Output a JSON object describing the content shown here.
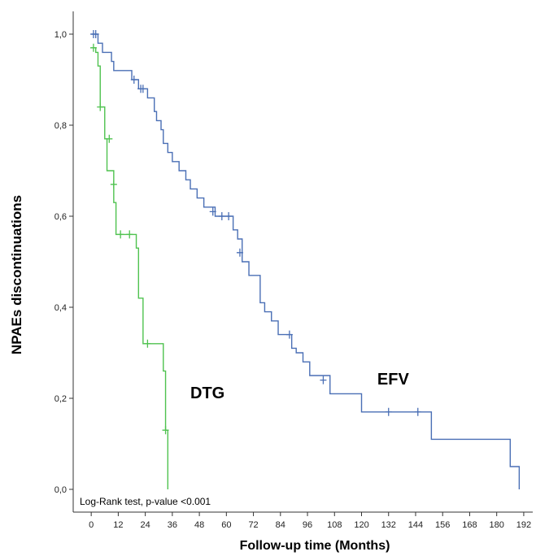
{
  "chart_data": {
    "type": "line",
    "step": true,
    "xlabel": "Follow-up time (Months)",
    "ylabel": "NPAEs discontinuations",
    "xlim": [
      -8,
      196
    ],
    "ylim": [
      -0.05,
      1.05
    ],
    "x_ticks": [
      0,
      12,
      24,
      36,
      48,
      60,
      72,
      84,
      96,
      108,
      120,
      132,
      144,
      156,
      168,
      180,
      192
    ],
    "y_ticks": [
      {
        "value": 0.0,
        "label": "0,0"
      },
      {
        "value": 0.2,
        "label": "0,2"
      },
      {
        "value": 0.4,
        "label": "0,4"
      },
      {
        "value": 0.6,
        "label": "0,6"
      },
      {
        "value": 0.8,
        "label": "0,8"
      },
      {
        "value": 1.0,
        "label": "1,0"
      }
    ],
    "grid": false,
    "annotation": "Log-Rank test, p-value <0.001",
    "series": [
      {
        "name": "EFV",
        "color": "#4a6fb5",
        "label_pos": [
          127,
          0.23
        ],
        "points": [
          [
            0,
            1.0
          ],
          [
            3,
            1.0
          ],
          [
            3,
            0.98
          ],
          [
            5,
            0.98
          ],
          [
            5,
            0.96
          ],
          [
            9,
            0.96
          ],
          [
            9,
            0.94
          ],
          [
            10,
            0.94
          ],
          [
            10,
            0.92
          ],
          [
            18,
            0.92
          ],
          [
            18,
            0.9
          ],
          [
            21,
            0.9
          ],
          [
            21,
            0.88
          ],
          [
            25,
            0.88
          ],
          [
            25,
            0.86
          ],
          [
            28,
            0.86
          ],
          [
            28,
            0.83
          ],
          [
            29,
            0.83
          ],
          [
            29,
            0.81
          ],
          [
            31,
            0.81
          ],
          [
            31,
            0.79
          ],
          [
            32,
            0.79
          ],
          [
            32,
            0.76
          ],
          [
            34,
            0.76
          ],
          [
            34,
            0.74
          ],
          [
            36,
            0.74
          ],
          [
            36,
            0.72
          ],
          [
            39,
            0.72
          ],
          [
            39,
            0.7
          ],
          [
            42,
            0.7
          ],
          [
            42,
            0.68
          ],
          [
            44,
            0.68
          ],
          [
            44,
            0.66
          ],
          [
            47,
            0.66
          ],
          [
            47,
            0.64
          ],
          [
            50,
            0.64
          ],
          [
            50,
            0.62
          ],
          [
            55,
            0.62
          ],
          [
            55,
            0.6
          ],
          [
            63,
            0.6
          ],
          [
            63,
            0.57
          ],
          [
            65,
            0.57
          ],
          [
            65,
            0.55
          ],
          [
            67,
            0.55
          ],
          [
            67,
            0.5
          ],
          [
            70,
            0.5
          ],
          [
            70,
            0.47
          ],
          [
            75,
            0.47
          ],
          [
            75,
            0.41
          ],
          [
            77,
            0.41
          ],
          [
            77,
            0.39
          ],
          [
            80,
            0.39
          ],
          [
            80,
            0.37
          ],
          [
            83,
            0.37
          ],
          [
            83,
            0.34
          ],
          [
            89,
            0.34
          ],
          [
            89,
            0.31
          ],
          [
            91,
            0.31
          ],
          [
            91,
            0.3
          ],
          [
            94,
            0.3
          ],
          [
            94,
            0.28
          ],
          [
            97,
            0.28
          ],
          [
            97,
            0.25
          ],
          [
            106,
            0.25
          ],
          [
            106,
            0.21
          ],
          [
            120,
            0.21
          ],
          [
            120,
            0.17
          ],
          [
            151,
            0.17
          ],
          [
            151,
            0.11
          ],
          [
            186,
            0.11
          ],
          [
            186,
            0.05
          ],
          [
            190,
            0.05
          ],
          [
            190,
            0.0
          ]
        ],
        "censored": [
          [
            1,
            1.0
          ],
          [
            2,
            1.0
          ],
          [
            19,
            0.9
          ],
          [
            22,
            0.88
          ],
          [
            23,
            0.88
          ],
          [
            54,
            0.61
          ],
          [
            58,
            0.6
          ],
          [
            61,
            0.6
          ],
          [
            66,
            0.52
          ],
          [
            88,
            0.34
          ],
          [
            103,
            0.24
          ],
          [
            132,
            0.17
          ],
          [
            145,
            0.17
          ]
        ]
      },
      {
        "name": "DTG",
        "color": "#4fc24f",
        "label_pos": [
          44,
          0.2
        ],
        "points": [
          [
            0,
            0.97
          ],
          [
            2,
            0.97
          ],
          [
            2,
            0.96
          ],
          [
            3,
            0.96
          ],
          [
            3,
            0.93
          ],
          [
            4,
            0.93
          ],
          [
            4,
            0.84
          ],
          [
            6,
            0.84
          ],
          [
            6,
            0.77
          ],
          [
            7,
            0.77
          ],
          [
            7,
            0.7
          ],
          [
            10,
            0.7
          ],
          [
            10,
            0.63
          ],
          [
            11,
            0.63
          ],
          [
            11,
            0.56
          ],
          [
            20,
            0.56
          ],
          [
            20,
            0.53
          ],
          [
            21,
            0.53
          ],
          [
            21,
            0.42
          ],
          [
            23,
            0.42
          ],
          [
            23,
            0.32
          ],
          [
            32,
            0.32
          ],
          [
            32,
            0.26
          ],
          [
            33,
            0.26
          ],
          [
            33,
            0.13
          ],
          [
            34,
            0.13
          ],
          [
            34,
            0.0
          ]
        ],
        "censored": [
          [
            1,
            0.97
          ],
          [
            4,
            0.84
          ],
          [
            8,
            0.77
          ],
          [
            10,
            0.67
          ],
          [
            13,
            0.56
          ],
          [
            17,
            0.56
          ],
          [
            25,
            0.32
          ],
          [
            33,
            0.13
          ]
        ]
      }
    ]
  }
}
